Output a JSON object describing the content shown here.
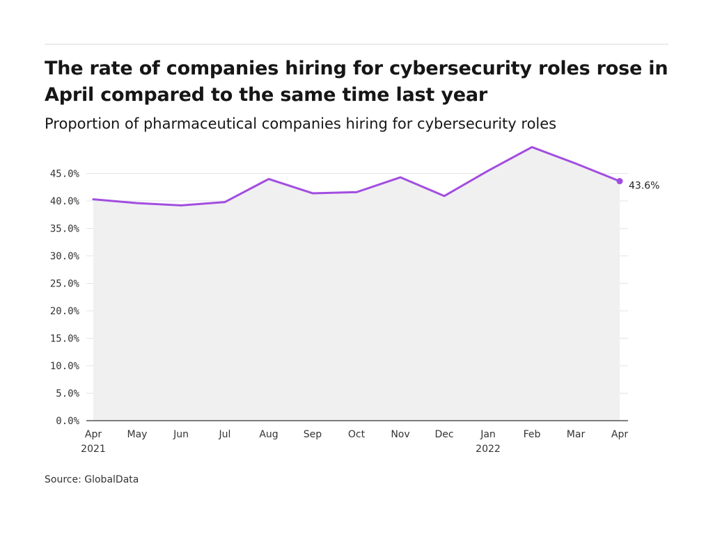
{
  "header": {
    "title": "The rate of companies hiring for cybersecurity roles rose in April compared to the same time last year",
    "subtitle": "Proportion of pharmaceutical companies hiring for cybersecurity roles"
  },
  "footer": {
    "source": "Source: GlobalData"
  },
  "colors": {
    "line": "#a24de0",
    "area": "#f0f0f0",
    "grid": "#e3e3e3",
    "axis": "#333333"
  },
  "chart_data": {
    "type": "line",
    "title": "The rate of companies hiring for cybersecurity roles rose in April compared to the same time last year",
    "subtitle": "Proportion of pharmaceutical companies hiring for cybersecurity roles",
    "x_labels": [
      {
        "month": "Apr",
        "year": "2021"
      },
      {
        "month": "May",
        "year": ""
      },
      {
        "month": "Jun",
        "year": ""
      },
      {
        "month": "Jul",
        "year": ""
      },
      {
        "month": "Aug",
        "year": ""
      },
      {
        "month": "Sep",
        "year": ""
      },
      {
        "month": "Oct",
        "year": ""
      },
      {
        "month": "Nov",
        "year": ""
      },
      {
        "month": "Dec",
        "year": ""
      },
      {
        "month": "Jan",
        "year": "2022"
      },
      {
        "month": "Feb",
        "year": ""
      },
      {
        "month": "Mar",
        "year": ""
      },
      {
        "month": "Apr",
        "year": ""
      }
    ],
    "series": [
      {
        "values": [
          40.3,
          39.6,
          39.2,
          39.8,
          44.0,
          41.4,
          41.6,
          44.3,
          40.9,
          45.5,
          49.8,
          46.8,
          43.6
        ]
      }
    ],
    "end_label": "43.6%",
    "ylim": [
      0,
      50
    ],
    "y_ticks": [
      "0.0%",
      "5.0%",
      "10.0%",
      "15.0%",
      "20.0%",
      "25.0%",
      "30.0%",
      "35.0%",
      "40.0%",
      "45.0%"
    ],
    "y_tick_values": [
      0,
      5,
      10,
      15,
      20,
      25,
      30,
      35,
      40,
      45
    ],
    "grid": true,
    "area_fill": true,
    "legend": "none"
  }
}
